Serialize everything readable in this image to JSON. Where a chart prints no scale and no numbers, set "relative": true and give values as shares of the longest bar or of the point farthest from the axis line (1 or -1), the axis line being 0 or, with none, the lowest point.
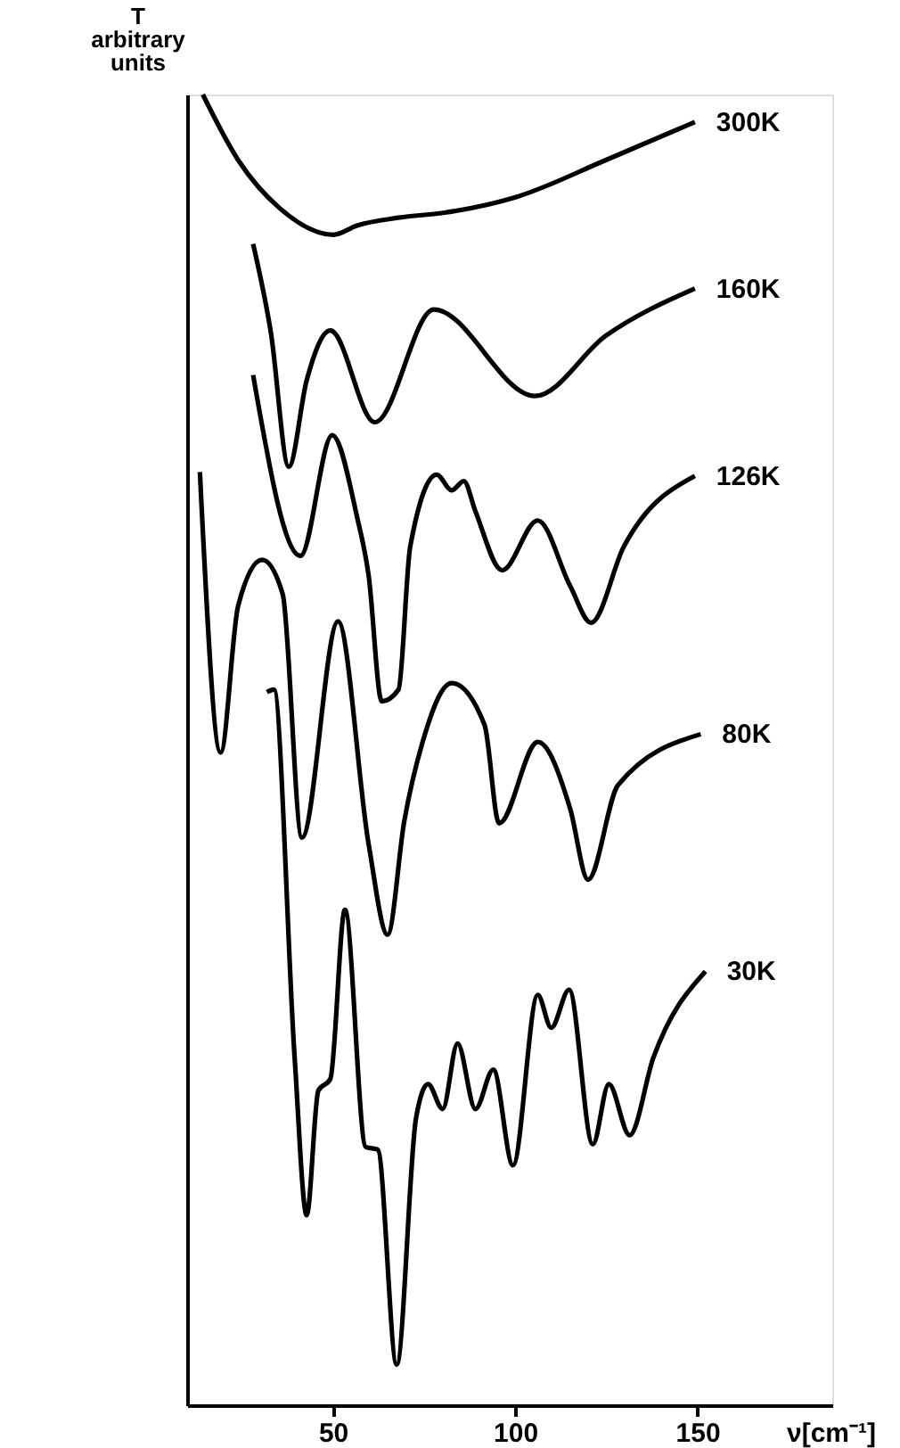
{
  "chart_data": {
    "type": "line",
    "relative": true,
    "ylabel": "T\narbitrary\nunits",
    "xlabel": "ν[cm⁻¹]",
    "xlim": [
      10,
      187
    ],
    "xticks": [
      50,
      100,
      150
    ],
    "grid": false,
    "legend": false,
    "marker": "none",
    "line_style": "solid",
    "series": [
      {
        "name": "300K",
        "color": "#000000",
        "x": [
          14.3,
          24.0,
          35.5,
          50.1,
          56.6,
          68.0,
          81.0,
          100.5,
          124.9,
          149.3
        ],
        "values": [
          1.0,
          0.95,
          0.913,
          0.893,
          0.9,
          0.906,
          0.91,
          0.922,
          0.95,
          0.979
        ]
      },
      {
        "name": "160K",
        "color": "#000000",
        "x": [
          28.1,
          33.0,
          37.9,
          42.8,
          49.3,
          61.5,
          77.7,
          105.4,
          124.9,
          149.3
        ],
        "values": [
          0.886,
          0.818,
          0.716,
          0.782,
          0.82,
          0.75,
          0.836,
          0.77,
          0.816,
          0.852
        ]
      },
      {
        "name": "126K",
        "color": "#000000",
        "x": [
          28.1,
          41.1,
          49.8,
          56.6,
          59.8,
          63.4,
          68.0,
          71.2,
          78.5,
          82.6,
          85.9,
          89.1,
          96.4,
          106.2,
          115.1,
          120.8,
          129.8,
          149.3
        ],
        "values": [
          0.786,
          0.648,
          0.74,
          0.678,
          0.633,
          0.537,
          0.546,
          0.655,
          0.71,
          0.698,
          0.705,
          0.682,
          0.637,
          0.675,
          0.625,
          0.597,
          0.655,
          0.709
        ]
      },
      {
        "name": "80K",
        "color": "#000000",
        "x": [
          13.5,
          19.2,
          24.0,
          30.6,
          36.2,
          41.5,
          51.4,
          59.8,
          65.0,
          69.6,
          74.5,
          82.6,
          91.6,
          95.6,
          106.2,
          115.1,
          120.0,
          128.2,
          150.9
        ],
        "values": [
          0.712,
          0.498,
          0.61,
          0.645,
          0.619,
          0.433,
          0.598,
          0.428,
          0.359,
          0.446,
          0.505,
          0.551,
          0.519,
          0.444,
          0.506,
          0.455,
          0.401,
          0.473,
          0.512
        ]
      },
      {
        "name": "30K",
        "color": "#000000",
        "x": [
          31.9,
          33.8,
          39.5,
          42.8,
          46.0,
          49.3,
          53.3,
          59.0,
          62.3,
          67.5,
          72.8,
          76.1,
          80.1,
          84.2,
          89.1,
          94.0,
          99.4,
          106.2,
          109.9,
          114.8,
          121.3,
          125.7,
          131.4,
          137.9,
          152.2
        ],
        "values": [
          0.544,
          0.546,
          0.265,
          0.145,
          0.24,
          0.249,
          0.378,
          0.197,
          0.195,
          0.031,
          0.219,
          0.245,
          0.226,
          0.276,
          0.226,
          0.256,
          0.183,
          0.313,
          0.288,
          0.317,
          0.199,
          0.245,
          0.206,
          0.265,
          0.331
        ]
      }
    ]
  }
}
